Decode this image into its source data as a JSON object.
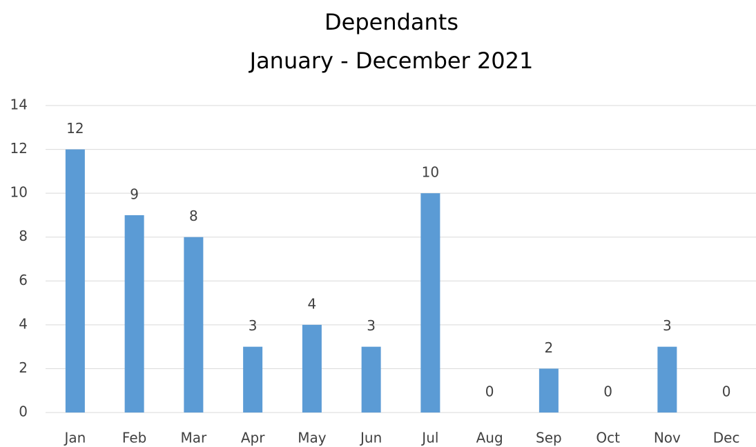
{
  "chart_data": {
    "type": "bar",
    "title": "Dependants",
    "subtitle": "January - December 2021",
    "categories": [
      "Jan",
      "Feb",
      "Mar",
      "Apr",
      "May",
      "Jun",
      "Jul",
      "Aug",
      "Sep",
      "Oct",
      "Nov",
      "Dec"
    ],
    "values": [
      12,
      9,
      8,
      3,
      4,
      3,
      10,
      0,
      2,
      0,
      3,
      0
    ],
    "color": "#5b9bd5",
    "ylim": [
      0,
      14
    ],
    "yticks": [
      0,
      2,
      4,
      6,
      8,
      10,
      12,
      14
    ],
    "grid": true
  }
}
